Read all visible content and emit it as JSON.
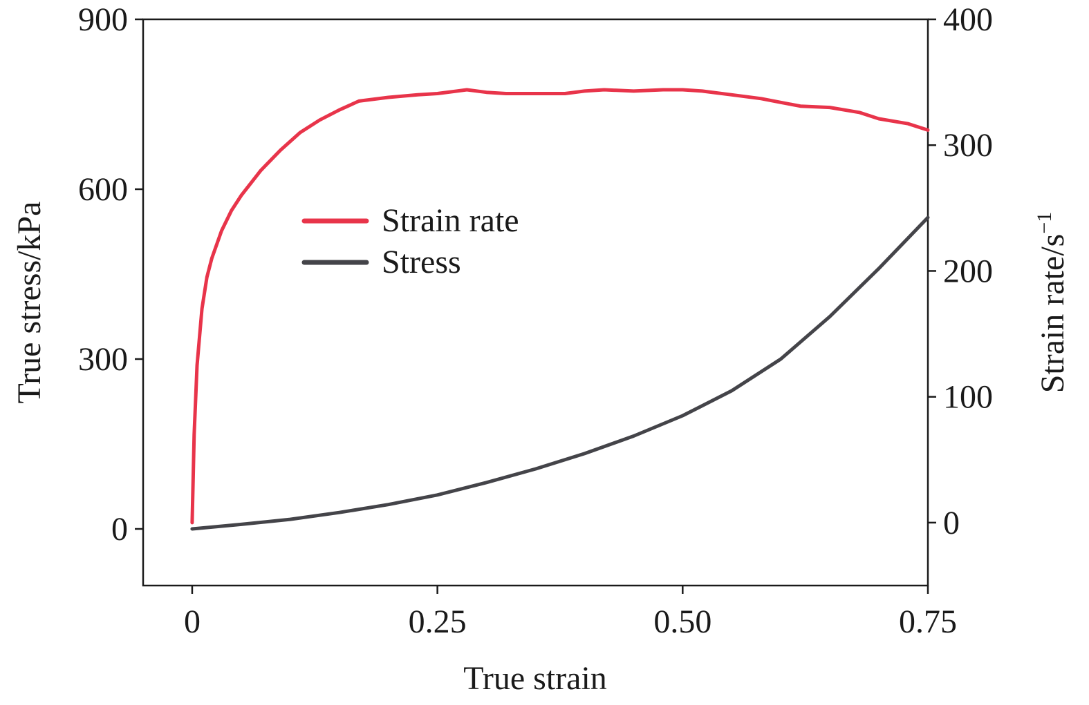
{
  "chart_data": {
    "type": "line",
    "xlabel": "True strain",
    "ylabel_left": "True stress/kPa",
    "ylabel_right_base": "Strain rate/s",
    "ylabel_right_sup": "−1",
    "xlim": [
      -0.05,
      0.75
    ],
    "ylim_left": [
      -100,
      900
    ],
    "ylim_right": [
      -50,
      400
    ],
    "x_ticks": [
      0,
      0.25,
      0.5,
      0.75
    ],
    "x_tick_labels": [
      "0",
      "0.25",
      "0.50",
      "0.75"
    ],
    "y_left_ticks": [
      0,
      300,
      600,
      900
    ],
    "y_left_tick_labels": [
      "0",
      "300",
      "600",
      "900"
    ],
    "y_right_ticks": [
      0,
      100,
      200,
      300,
      400
    ],
    "y_right_tick_labels": [
      "0",
      "100",
      "200",
      "300",
      "400"
    ],
    "legend_position": "center-left",
    "series": [
      {
        "name": "Strain rate",
        "axis": "right",
        "color": "#e8344a",
        "x": [
          0,
          0.002,
          0.005,
          0.01,
          0.015,
          0.02,
          0.03,
          0.04,
          0.05,
          0.07,
          0.09,
          0.11,
          0.13,
          0.15,
          0.17,
          0.2,
          0.23,
          0.25,
          0.27,
          0.28,
          0.3,
          0.32,
          0.35,
          0.38,
          0.4,
          0.42,
          0.45,
          0.48,
          0.5,
          0.52,
          0.55,
          0.58,
          0.6,
          0.62,
          0.65,
          0.68,
          0.7,
          0.73,
          0.75
        ],
        "y": [
          0,
          70,
          125,
          170,
          195,
          210,
          232,
          248,
          260,
          280,
          296,
          310,
          320,
          328,
          335,
          338,
          340,
          341,
          343,
          344,
          342,
          341,
          341,
          341,
          343,
          344,
          343,
          344,
          344,
          343,
          340,
          337,
          334,
          331,
          330,
          326,
          321,
          317,
          312
        ]
      },
      {
        "name": "Stress",
        "axis": "left",
        "color": "#444449",
        "x": [
          0,
          0.05,
          0.1,
          0.15,
          0.2,
          0.25,
          0.3,
          0.35,
          0.4,
          0.45,
          0.5,
          0.55,
          0.6,
          0.65,
          0.7,
          0.75
        ],
        "y": [
          0,
          8,
          17,
          29,
          43,
          60,
          82,
          106,
          133,
          164,
          200,
          244,
          300,
          375,
          460,
          550
        ]
      }
    ]
  }
}
